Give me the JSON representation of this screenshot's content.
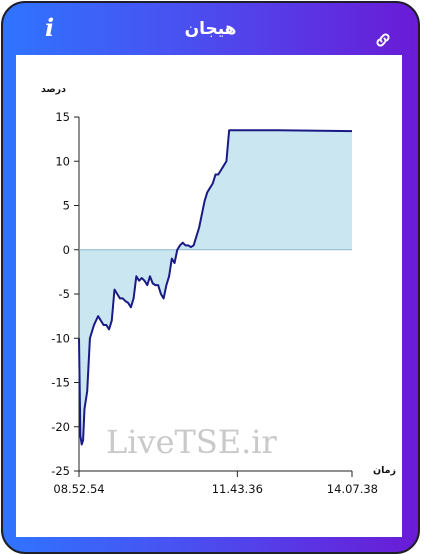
{
  "header": {
    "title": "هیجان",
    "info_icon": "info-icon",
    "link_icon": "link-icon"
  },
  "colors": {
    "line": "#1a1a86",
    "fill": "#c9e6f1",
    "gradient_start": "#2f74ff",
    "gradient_end": "#6a1bd6"
  },
  "watermark": "LiveTSE.ir",
  "chart_data": {
    "type": "area",
    "title": "",
    "ylabel": "درصد",
    "xlabel": "زمان",
    "ylim": [
      -25,
      15
    ],
    "yticks": [
      15,
      10,
      5,
      0,
      -5,
      -10,
      -15,
      -20,
      -25
    ],
    "yticklabels": [
      "15",
      "10",
      "5",
      "0",
      "-5",
      "-10",
      "-15",
      "-20",
      "-25"
    ],
    "xtick_labels": [
      "08.52.54",
      "11.43.36",
      "14.07.38"
    ],
    "xtick_positions": [
      0,
      0.58,
      1
    ],
    "grid": false,
    "x": [
      0,
      0.005,
      0.01,
      0.015,
      0.02,
      0.03,
      0.04,
      0.055,
      0.07,
      0.08,
      0.09,
      0.1,
      0.11,
      0.12,
      0.13,
      0.14,
      0.15,
      0.16,
      0.17,
      0.18,
      0.19,
      0.2,
      0.21,
      0.22,
      0.23,
      0.24,
      0.25,
      0.26,
      0.27,
      0.28,
      0.29,
      0.3,
      0.31,
      0.32,
      0.33,
      0.34,
      0.35,
      0.36,
      0.37,
      0.38,
      0.39,
      0.4,
      0.41,
      0.42,
      0.43,
      0.44,
      0.45,
      0.46,
      0.47,
      0.48,
      0.49,
      0.5,
      0.51,
      0.52,
      0.53,
      0.54,
      0.55,
      0.56,
      0.57,
      0.58,
      0.59,
      0.6,
      0.61,
      0.62,
      0.63,
      0.64,
      0.65,
      0.66,
      0.67,
      0.68,
      0.69,
      0.7,
      0.71,
      0.72,
      0.73,
      1
    ],
    "y": [
      -10,
      -21,
      -22,
      -21.5,
      -18,
      -16,
      -10,
      -8.5,
      -7.5,
      -8,
      -8.5,
      -8.5,
      -9,
      -8,
      -4.5,
      -5,
      -5.5,
      -5.5,
      -5.8,
      -6,
      -6.5,
      -5.5,
      -3,
      -3.5,
      -3.2,
      -3.5,
      -4,
      -3,
      -3.8,
      -4,
      -4,
      -5,
      -5.5,
      -4,
      -3,
      -1,
      -1.5,
      0,
      0.5,
      0.8,
      0.5,
      0.5,
      0.3,
      0.5,
      1.5,
      2.5,
      4,
      5.5,
      6.5,
      7,
      7.5,
      8.5,
      8.5,
      9,
      9.5,
      10,
      13.5,
      13.5,
      13.5,
      13.5,
      13.5,
      13.5,
      13.5,
      13.5,
      13.5,
      13.5,
      13.5,
      13.5,
      13.5,
      13.5,
      13.5,
      13.5,
      13.5,
      13.5,
      13.5,
      13.4
    ]
  }
}
